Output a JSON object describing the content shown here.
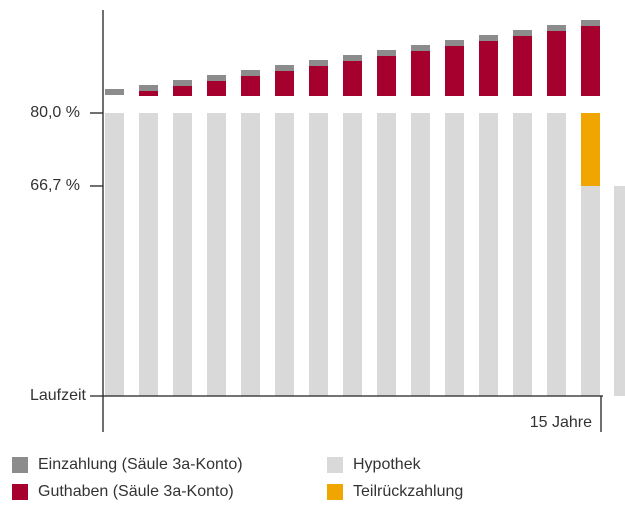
{
  "chart": {
    "y_labels": [
      "80,0 %",
      "66,7 %",
      "Laufzeit"
    ],
    "x_label": "15 Jahre",
    "legend": [
      {
        "name": "Einzahlung (Säule 3a-Konto)",
        "color": "#8c8c8c"
      },
      {
        "name": "Guthaben (Säule 3a-Konto)",
        "color": "#a6002f"
      },
      {
        "name": "Hypothek",
        "color": "#d9d9d9"
      },
      {
        "name": "Teilrückzahlung",
        "color": "#f0a500"
      }
    ]
  }
}
